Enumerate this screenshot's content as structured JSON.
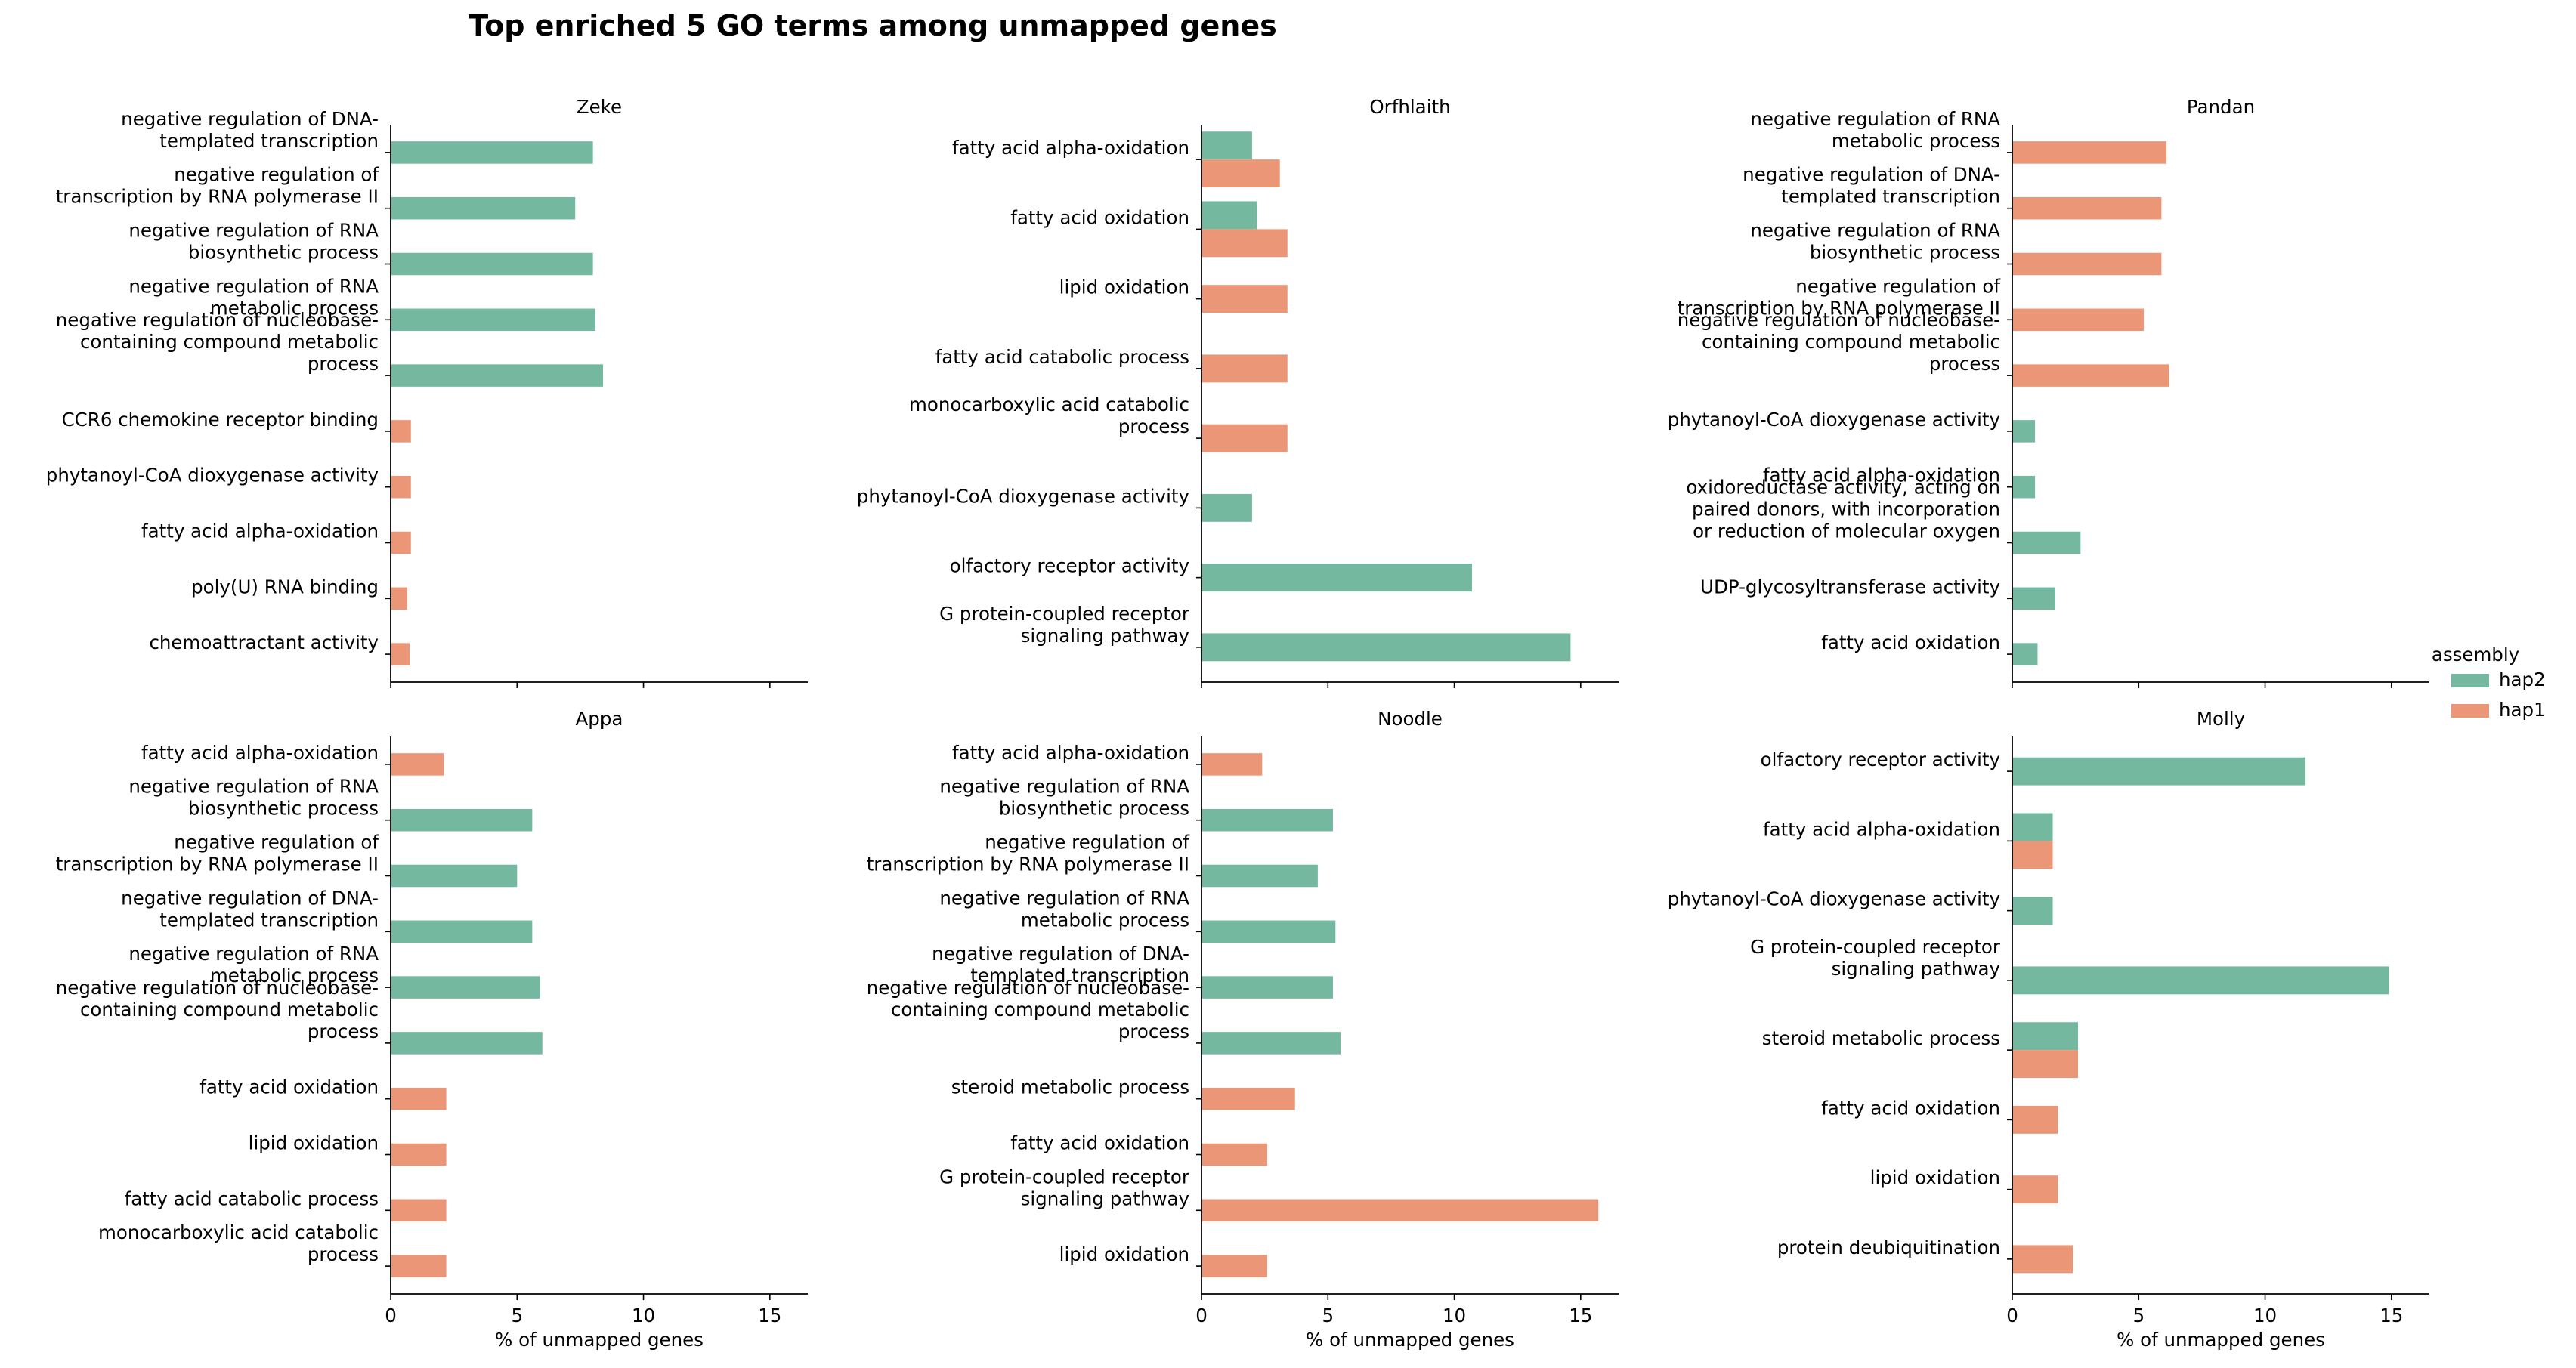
{
  "chart_data": {
    "type": "bar",
    "orientation": "horizontal",
    "title": "Top enriched 5 GO terms among unmapped genes",
    "xlabel": "% of unmapped genes",
    "xlim": [
      0,
      16.5
    ],
    "xticks": [
      0,
      5,
      10,
      15
    ],
    "legend": {
      "title": "assembly",
      "placement": "right",
      "entries": [
        {
          "name": "hap2",
          "color": "#74b8a0"
        },
        {
          "name": "hap1",
          "color": "#eb9676"
        }
      ]
    },
    "panels": [
      {
        "title": "Zeke",
        "categories": [
          [
            "negative regulation of DNA-",
            "templated transcription"
          ],
          [
            "negative regulation of",
            "transcription by RNA polymerase II"
          ],
          [
            "negative regulation of RNA",
            "biosynthetic process"
          ],
          [
            "negative regulation of RNA",
            "metabolic process"
          ],
          [
            "negative regulation of nucleobase-",
            "containing compound metabolic",
            "process"
          ],
          [
            "CCR6 chemokine receptor binding"
          ],
          [
            "phytanoyl-CoA dioxygenase activity"
          ],
          [
            "fatty acid alpha-oxidation"
          ],
          [
            "poly(U) RNA binding"
          ],
          [
            "chemoattractant activity"
          ]
        ],
        "hap2": [
          8.0,
          7.3,
          8.0,
          8.1,
          8.4,
          null,
          null,
          null,
          null,
          null
        ],
        "hap1": [
          null,
          null,
          null,
          null,
          null,
          0.8,
          0.8,
          0.8,
          0.65,
          0.75
        ]
      },
      {
        "title": "Orfhlaith",
        "categories": [
          [
            "fatty acid alpha-oxidation"
          ],
          [
            "fatty acid oxidation"
          ],
          [
            "lipid oxidation"
          ],
          [
            "fatty acid catabolic process"
          ],
          [
            "monocarboxylic acid catabolic",
            "process"
          ],
          [
            "phytanoyl-CoA dioxygenase activity"
          ],
          [
            "olfactory receptor activity"
          ],
          [
            "G protein-coupled receptor",
            "signaling pathway"
          ]
        ],
        "hap2": [
          2.0,
          2.2,
          null,
          null,
          null,
          2.0,
          10.7,
          14.6
        ],
        "hap1": [
          3.1,
          3.4,
          3.4,
          3.4,
          3.4,
          null,
          null,
          null
        ]
      },
      {
        "title": "Pandan",
        "categories": [
          [
            "negative regulation of RNA",
            "metabolic process"
          ],
          [
            "negative regulation of DNA-",
            "templated transcription"
          ],
          [
            "negative regulation of RNA",
            "biosynthetic process"
          ],
          [
            "negative regulation of",
            "transcription by RNA polymerase II"
          ],
          [
            "negative regulation of nucleobase-",
            "containing compound metabolic",
            "process"
          ],
          [
            "phytanoyl-CoA dioxygenase activity"
          ],
          [
            "fatty acid alpha-oxidation"
          ],
          [
            "oxidoreductase activity, acting on",
            "paired donors, with incorporation",
            "or reduction of molecular oxygen"
          ],
          [
            "UDP-glycosyltransferase activity"
          ],
          [
            "fatty acid oxidation"
          ]
        ],
        "hap2": [
          null,
          null,
          null,
          null,
          null,
          0.9,
          0.9,
          2.7,
          1.7,
          1.0
        ],
        "hap1": [
          6.1,
          5.9,
          5.9,
          5.2,
          6.2,
          null,
          null,
          null,
          null,
          null
        ]
      },
      {
        "title": "Appa",
        "categories": [
          [
            "fatty acid alpha-oxidation"
          ],
          [
            "negative regulation of RNA",
            "biosynthetic process"
          ],
          [
            "negative regulation of",
            "transcription by RNA polymerase II"
          ],
          [
            "negative regulation of DNA-",
            "templated transcription"
          ],
          [
            "negative regulation of RNA",
            "metabolic process"
          ],
          [
            "negative regulation of nucleobase-",
            "containing compound metabolic",
            "process"
          ],
          [
            "fatty acid oxidation"
          ],
          [
            "lipid oxidation"
          ],
          [
            "fatty acid catabolic process"
          ],
          [
            "monocarboxylic acid catabolic",
            "process"
          ]
        ],
        "hap2": [
          null,
          5.6,
          5.0,
          5.6,
          5.9,
          6.0,
          null,
          null,
          null,
          null
        ],
        "hap1": [
          2.1,
          null,
          null,
          null,
          null,
          null,
          2.2,
          2.2,
          2.2,
          2.2
        ]
      },
      {
        "title": "Noodle",
        "categories": [
          [
            "fatty acid alpha-oxidation"
          ],
          [
            "negative regulation of RNA",
            "biosynthetic process"
          ],
          [
            "negative regulation of",
            "transcription by RNA polymerase II"
          ],
          [
            "negative regulation of RNA",
            "metabolic process"
          ],
          [
            "negative regulation of DNA-",
            "templated transcription"
          ],
          [
            "negative regulation of nucleobase-",
            "containing compound metabolic",
            "process"
          ],
          [
            "steroid metabolic process"
          ],
          [
            "fatty acid oxidation"
          ],
          [
            "G protein-coupled receptor",
            "signaling pathway"
          ],
          [
            "lipid oxidation"
          ]
        ],
        "hap2": [
          null,
          5.2,
          4.6,
          5.3,
          5.2,
          5.5,
          null,
          null,
          null,
          null
        ],
        "hap1": [
          2.4,
          null,
          null,
          null,
          null,
          null,
          3.7,
          2.6,
          15.7,
          2.6
        ]
      },
      {
        "title": "Molly",
        "categories": [
          [
            "olfactory receptor activity"
          ],
          [
            "fatty acid alpha-oxidation"
          ],
          [
            "phytanoyl-CoA dioxygenase activity"
          ],
          [
            "G protein-coupled receptor",
            "signaling pathway"
          ],
          [
            "steroid metabolic process"
          ],
          [
            "fatty acid oxidation"
          ],
          [
            "lipid oxidation"
          ],
          [
            "protein deubiquitination"
          ]
        ],
        "hap2": [
          11.6,
          1.6,
          1.6,
          14.9,
          2.6,
          null,
          null,
          null
        ],
        "hap1": [
          null,
          1.6,
          null,
          null,
          2.6,
          1.8,
          1.8,
          2.4
        ]
      }
    ]
  }
}
